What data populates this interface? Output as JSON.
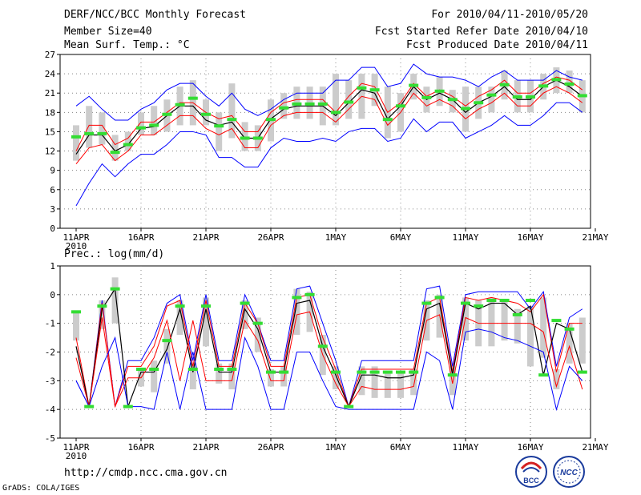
{
  "header": {
    "title": "DERF/NCC/BCC Monthly Forecast",
    "member_size": "Member Size=40",
    "variable": "Mean Surf. Temp.: °C",
    "period": "For 2010/04/11-2010/05/20",
    "refer_date": "Fcst Started Refer Date 2010/04/10",
    "produced_date": "Fcst Produced Date 2010/04/11"
  },
  "precip_label": "Prec.: log(mm/d)",
  "footer": {
    "url": "http://cmdp.ncc.cma.gov.cn",
    "credit": "GrADS: COLA/IGES",
    "logo_bcc": "BCC",
    "logo_ncc": "NCC"
  },
  "colors": {
    "max_min": "#0000ff",
    "spread": "#ff0000",
    "mean": "#000000",
    "marker": "#33dd33",
    "box": "#cccccc",
    "grid": "#888888"
  },
  "chart_data": [
    {
      "type": "line",
      "title": "Mean Surf. Temp.: °C",
      "x_labels": [
        "11APR",
        "16APR",
        "21APR",
        "26APR",
        "1MAY",
        "6MAY",
        "11MAY",
        "16MAY",
        "21MAY"
      ],
      "x_sublabel": "2010",
      "ylim": [
        0,
        27
      ],
      "yticks": [
        0,
        3,
        6,
        9,
        12,
        15,
        18,
        21,
        24,
        27
      ],
      "days": 40,
      "series": [
        {
          "name": "max",
          "values": [
            19,
            20.5,
            18.5,
            16.8,
            16.8,
            18.5,
            19.5,
            21.5,
            22.5,
            22.5,
            20.5,
            19,
            21,
            18.5,
            17.5,
            18.5,
            20,
            21,
            21,
            21,
            23,
            23,
            25,
            25,
            22,
            22.5,
            25.5,
            24,
            23.5,
            23.5,
            23,
            22,
            23.5,
            24.5,
            23,
            23,
            23,
            24.5,
            23.5,
            23
          ]
        },
        {
          "name": "upper",
          "values": [
            12,
            16,
            16,
            13,
            14,
            16.5,
            16.5,
            18,
            19.5,
            19.5,
            18,
            17,
            17.5,
            15,
            15,
            18,
            19.5,
            20,
            20,
            20,
            18,
            20.5,
            22.5,
            22,
            18,
            19.5,
            22.5,
            20.5,
            21.5,
            20.5,
            19,
            20.5,
            21.5,
            23,
            21,
            21,
            22.5,
            23.5,
            23,
            21.5
          ]
        },
        {
          "name": "mean",
          "values": [
            11.5,
            14.5,
            14.5,
            12,
            13,
            15.5,
            15.8,
            17.5,
            19,
            19,
            16.8,
            16,
            16.5,
            14,
            14,
            17,
            18.5,
            19,
            19,
            19,
            17.5,
            19.5,
            21.5,
            21,
            17,
            19,
            22,
            20,
            21,
            20,
            18,
            19.5,
            20.5,
            22,
            20,
            20,
            22,
            23,
            22,
            20.5
          ]
        },
        {
          "name": "lower",
          "values": [
            10,
            12.5,
            13,
            10.5,
            12,
            14.5,
            14.5,
            16,
            17.5,
            17.5,
            15.5,
            14.5,
            15.5,
            12.5,
            12.5,
            16,
            17.5,
            18,
            18,
            18,
            16.5,
            18.5,
            20.5,
            20,
            16,
            18,
            21,
            19,
            20,
            19,
            17,
            18.5,
            19.5,
            21,
            19,
            19,
            21,
            22,
            21,
            19.5
          ]
        },
        {
          "name": "min",
          "values": [
            3.5,
            7,
            10,
            8,
            10,
            11.5,
            11.5,
            13,
            15,
            15,
            14.5,
            11,
            11,
            9.5,
            9.5,
            12.5,
            14,
            13.5,
            13.5,
            14,
            13.5,
            15,
            15.5,
            15.5,
            13.5,
            14,
            17,
            15,
            16.5,
            16.5,
            14,
            15,
            16,
            17.5,
            16,
            16,
            17.5,
            19.5,
            19.5,
            18
          ]
        },
        {
          "name": "obs",
          "values": [
            14.2,
            14.7,
            14.7,
            11.8,
            13,
            15.6,
            16,
            17.7,
            19.2,
            20.2,
            17.7,
            15.9,
            16.9,
            14,
            14,
            16.9,
            18.7,
            19.3,
            19.3,
            19.3,
            18,
            19.6,
            21.8,
            21.5,
            16.9,
            19,
            22.2,
            20.3,
            21.3,
            20,
            18.6,
            19.5,
            20.7,
            22.3,
            20.4,
            20.4,
            22.1,
            23.1,
            22.4,
            20.6
          ]
        }
      ],
      "box": [
        [
          10.5,
          16
        ],
        [
          12.5,
          19
        ],
        [
          13,
          18
        ],
        [
          10.5,
          14.5
        ],
        [
          12,
          15
        ],
        [
          14.5,
          18
        ],
        [
          14.5,
          19
        ],
        [
          15,
          20
        ],
        [
          16,
          22
        ],
        [
          16,
          23
        ],
        [
          16,
          20
        ],
        [
          12,
          18
        ],
        [
          14,
          22.5
        ],
        [
          12,
          16.5
        ],
        [
          12,
          16
        ],
        [
          13.5,
          20
        ],
        [
          17,
          21
        ],
        [
          17,
          22
        ],
        [
          17,
          22
        ],
        [
          16,
          22
        ],
        [
          16,
          24
        ],
        [
          17,
          23
        ],
        [
          17,
          24
        ],
        [
          19,
          24
        ],
        [
          14,
          22
        ],
        [
          15,
          21
        ],
        [
          20,
          24
        ],
        [
          18,
          22
        ],
        [
          19,
          23.5
        ],
        [
          18,
          21.5
        ],
        [
          15,
          22
        ],
        [
          17,
          22
        ],
        [
          18,
          22
        ],
        [
          20,
          24.5
        ],
        [
          18,
          23
        ],
        [
          18,
          23
        ],
        [
          20,
          24
        ],
        [
          21,
          25
        ],
        [
          21,
          24.5
        ],
        [
          18,
          23
        ]
      ]
    },
    {
      "type": "line",
      "title": "Prec.: log(mm/d)",
      "x_labels": [
        "11APR",
        "16APR",
        "21APR",
        "26APR",
        "1MAY",
        "6MAY",
        "11MAY",
        "16MAY",
        "21MAY"
      ],
      "x_sublabel": "2010",
      "ylim": [
        -5,
        1
      ],
      "yticks": [
        -5,
        -4,
        -3,
        -2,
        -1,
        0,
        1
      ],
      "days": 40,
      "series": [
        {
          "name": "max",
          "values": [
            -3,
            -3.9,
            -0.2,
            -3.9,
            -2.3,
            -2.3,
            -1.5,
            -0.3,
            0,
            -2.3,
            0,
            -2.3,
            -2.3,
            0,
            -1,
            -2.3,
            -2.3,
            0.2,
            0.3,
            -1,
            -2.3,
            -3.9,
            -2.3,
            -2.3,
            -2.3,
            -2.3,
            -2.3,
            0.2,
            0.3,
            -2.5,
            0,
            0.1,
            0.1,
            0.1,
            0.1,
            -0.5,
            0.1,
            -2.5,
            -0.8,
            -0.5
          ]
        },
        {
          "name": "upper",
          "values": [
            -1.5,
            -3.9,
            -0.3,
            -3.9,
            -2.5,
            -2.5,
            -1.8,
            -0.4,
            -0.2,
            -2.5,
            -0.2,
            -2.5,
            -2.5,
            -0.3,
            -1,
            -2.5,
            -2.5,
            -0.1,
            0,
            -1.5,
            -2.6,
            -3.9,
            -2.6,
            -2.6,
            -2.6,
            -2.6,
            -2.6,
            -0.3,
            -0.1,
            -2.7,
            -0.1,
            -0.2,
            -0.1,
            -0.2,
            -0.3,
            -0.6,
            0,
            -2.7,
            -1,
            -1
          ]
        },
        {
          "name": "mean",
          "values": [
            -1.8,
            -3.9,
            -0.5,
            0.2,
            -3.9,
            -2.7,
            -2.7,
            -1.9,
            -0.5,
            -2.7,
            -0.5,
            -2.7,
            -2.7,
            -0.5,
            -1.2,
            -2.7,
            -2.7,
            -0.3,
            -0.2,
            -1.8,
            -2.8,
            -3.9,
            -2.8,
            -2.8,
            -2.9,
            -2.9,
            -2.8,
            -0.5,
            -0.3,
            -2.8,
            -0.3,
            -0.5,
            -0.3,
            -0.3,
            -0.7,
            -0.4,
            -2.8,
            -1,
            -1.2,
            -2.7
          ]
        },
        {
          "name": "lower",
          "values": [
            -2.2,
            -3.9,
            -0.8,
            -3.9,
            -2.9,
            -2.9,
            -2.2,
            -0.9,
            -3,
            -0.9,
            -3,
            -3,
            -3,
            -0.9,
            -1.6,
            -3,
            -3,
            -0.7,
            -0.6,
            -2.1,
            -3.1,
            -3.9,
            -3.2,
            -3.3,
            -3.3,
            -3.3,
            -3.2,
            -0.9,
            -0.7,
            -3.1,
            -0.8,
            -1,
            -1,
            -1,
            -1,
            -1,
            -1.3,
            -3.2,
            -1.8,
            -3.3
          ]
        },
        {
          "name": "min",
          "values": [
            -3,
            -3.9,
            -2.5,
            -1.5,
            -3.9,
            -3.9,
            -4,
            -2,
            -4,
            -2,
            -4,
            -4,
            -4,
            -1.5,
            -2.5,
            -4,
            -4,
            -2,
            -2,
            -3,
            -3.9,
            -4,
            -4,
            -4,
            -4,
            -4,
            -4,
            -2,
            -2.3,
            -4,
            -1.3,
            -1.2,
            -1.3,
            -1.5,
            -1.6,
            -1.8,
            -2,
            -4,
            -2.5,
            -3
          ]
        },
        {
          "name": "obs",
          "values": [
            -0.6,
            -3.9,
            -0.4,
            0.2,
            -3.9,
            -2.6,
            -2.6,
            -1.6,
            -0.4,
            -2.6,
            -0.4,
            -2.6,
            -2.6,
            -0.3,
            -1,
            -2.7,
            -2.7,
            -0.1,
            0,
            -1.8,
            -2.7,
            -3.9,
            -2.7,
            -2.7,
            -2.7,
            -2.7,
            -2.7,
            -0.3,
            -0.1,
            -2.8,
            -0.3,
            -0.4,
            -0.2,
            -0.2,
            -0.7,
            -0.2,
            -2.8,
            -0.9,
            -1.2,
            -2.7
          ]
        }
      ],
      "box": [
        [
          -1.6,
          -0.6
        ],
        [
          -3.9,
          -3.9
        ],
        [
          -1.2,
          -0.2
        ],
        [
          -1,
          0.6
        ],
        [
          -3.9,
          -3.9
        ],
        [
          -3.2,
          -2.6
        ],
        [
          -3.4,
          -2.3
        ],
        [
          -2.4,
          -1.2
        ],
        [
          -1.4,
          -0.2
        ],
        [
          -3.3,
          -2.4
        ],
        [
          -1.8,
          -0.1
        ],
        [
          -3.1,
          -2.4
        ],
        [
          -3.3,
          -2.4
        ],
        [
          -1.2,
          -0.2
        ],
        [
          -2,
          -0.8
        ],
        [
          -3.2,
          -2.6
        ],
        [
          -3.2,
          -2.5
        ],
        [
          -1.4,
          0.2
        ],
        [
          -1.3,
          0.1
        ],
        [
          -2.8,
          -1.4
        ],
        [
          -3.3,
          -2.5
        ],
        [
          -3.9,
          -3.9
        ],
        [
          -3.5,
          -2.5
        ],
        [
          -3.6,
          -2.5
        ],
        [
          -3.6,
          -2.7
        ],
        [
          -3.6,
          -2.7
        ],
        [
          -3.5,
          -2.6
        ],
        [
          -1.6,
          -0.2
        ],
        [
          -1.5,
          0
        ],
        [
          -3.5,
          -2.5
        ],
        [
          -1.6,
          -0.1
        ],
        [
          -1.8,
          -0.2
        ],
        [
          -1.8,
          -0.1
        ],
        [
          -1.6,
          -0.2
        ],
        [
          -1.7,
          -0.5
        ],
        [
          -2.5,
          -0.4
        ],
        [
          -2.2,
          -0.1
        ],
        [
          -3.3,
          -2.6
        ],
        [
          -2.4,
          -1
        ],
        [
          -2.4,
          -0.8
        ]
      ]
    }
  ]
}
